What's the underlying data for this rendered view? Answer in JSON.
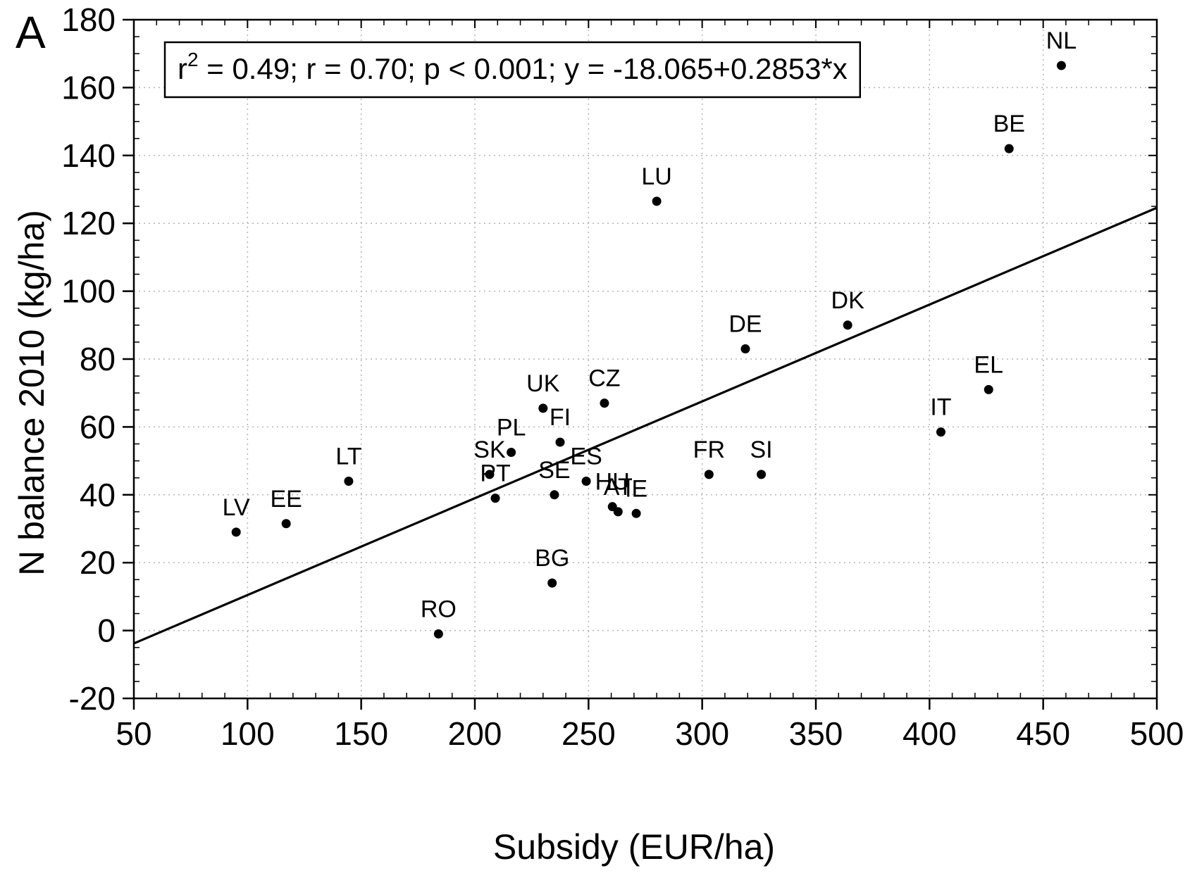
{
  "panel_label": "A",
  "chart_data": {
    "type": "scatter",
    "xlabel": "Subsidy (EUR/ha)",
    "ylabel": "N balance 2010 (kg/ha)",
    "xlim": [
      50,
      500
    ],
    "ylim": [
      -20,
      180
    ],
    "x_ticks": [
      50,
      100,
      150,
      200,
      250,
      300,
      350,
      400,
      450,
      500
    ],
    "y_ticks": [
      -20,
      0,
      20,
      40,
      60,
      80,
      100,
      120,
      140,
      160,
      180
    ],
    "grid": true,
    "annotation": {
      "r_label": "r",
      "r_sup": "2",
      "rest": " = 0.49; r = 0.70; p < 0.001; y = -18.065+0.2853*x"
    },
    "regression": {
      "intercept": -18.065,
      "slope": 0.2853
    },
    "points": [
      {
        "label": "NL",
        "x": 458,
        "y": 166.5
      },
      {
        "label": "BE",
        "x": 435,
        "y": 142
      },
      {
        "label": "LU",
        "x": 280,
        "y": 126.5
      },
      {
        "label": "DK",
        "x": 364,
        "y": 90
      },
      {
        "label": "DE",
        "x": 319,
        "y": 83
      },
      {
        "label": "EL",
        "x": 426,
        "y": 71
      },
      {
        "label": "CZ",
        "x": 257,
        "y": 67
      },
      {
        "label": "UK",
        "x": 230,
        "y": 65.5
      },
      {
        "label": "IT",
        "x": 405,
        "y": 58.5
      },
      {
        "label": "FI",
        "x": 237.5,
        "y": 55.5
      },
      {
        "label": "PL",
        "x": 216,
        "y": 52.5
      },
      {
        "label": "SK",
        "x": 206.5,
        "y": 46
      },
      {
        "label": "FR",
        "x": 303,
        "y": 46
      },
      {
        "label": "SI",
        "x": 326,
        "y": 46
      },
      {
        "label": "ES",
        "x": 249,
        "y": 44
      },
      {
        "label": "LT",
        "x": 144.5,
        "y": 44
      },
      {
        "label": "SE",
        "x": 235,
        "y": 40
      },
      {
        "label": "PT",
        "x": 209,
        "y": 39
      },
      {
        "label": "HU",
        "x": 260.5,
        "y": 36.5
      },
      {
        "label": "AT",
        "x": 263,
        "y": 35
      },
      {
        "label": "IE",
        "x": 271,
        "y": 34.5
      },
      {
        "label": "EE",
        "x": 117,
        "y": 31.5
      },
      {
        "label": "LV",
        "x": 95,
        "y": 29
      },
      {
        "label": "BG",
        "x": 234,
        "y": 14
      },
      {
        "label": "RO",
        "x": 184,
        "y": -1
      }
    ]
  }
}
